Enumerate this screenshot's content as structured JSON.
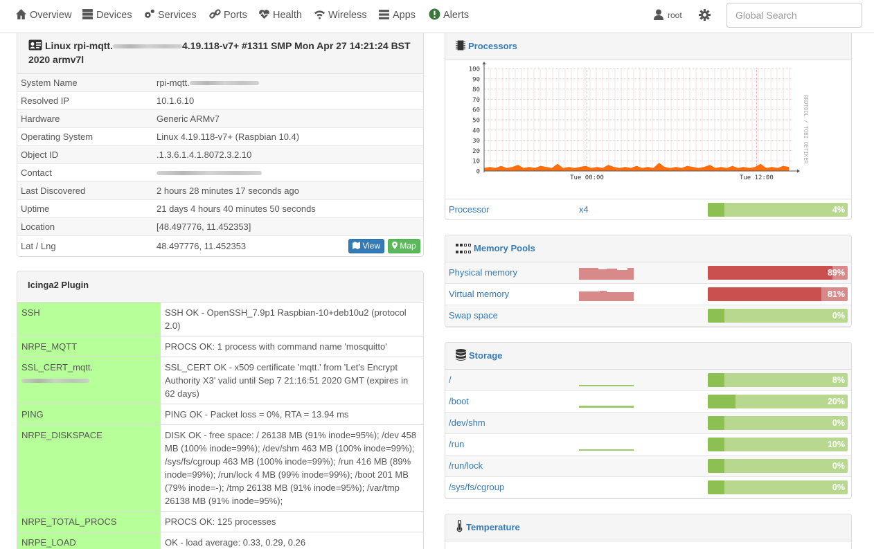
{
  "nav": {
    "items": [
      {
        "label": "Overview",
        "icon": "home-icon"
      },
      {
        "label": "Devices",
        "icon": "server-icon"
      },
      {
        "label": "Services",
        "icon": "cogs-icon"
      },
      {
        "label": "Ports",
        "icon": "link-icon"
      },
      {
        "label": "Health",
        "icon": "heartbeat-icon"
      },
      {
        "label": "Wireless",
        "icon": "wifi-icon"
      },
      {
        "label": "Apps",
        "icon": "tasks-icon"
      },
      {
        "label": "Alerts",
        "icon": "exclamation-circle-icon"
      }
    ],
    "user": "root",
    "search_placeholder": "Global Search"
  },
  "system": {
    "title_prefix": "Linux rpi-mqtt.",
    "title_suffix": "4.19.118-v7+ #1311 SMP Mon Apr 27 14:21:24 BST 2020 armv7l",
    "rows": [
      {
        "key": "System Name",
        "value": "rpi-mqtt."
      },
      {
        "key": "Resolved IP",
        "value": "10.1.6.10"
      },
      {
        "key": "Hardware",
        "value": "Generic ARMv7"
      },
      {
        "key": "Operating System",
        "value": "Linux 4.19.118-v7+ (Raspbian 10.4)"
      },
      {
        "key": "Object ID",
        "value": ".1.3.6.1.4.1.8072.3.2.10"
      },
      {
        "key": "Contact",
        "value": ""
      },
      {
        "key": "Last Discovered",
        "value": "2 hours 28 minutes 17 seconds ago"
      },
      {
        "key": "Uptime",
        "value": "21 days 4 hours 40 minutes 50 seconds"
      },
      {
        "key": "Location",
        "value": "[48.497776, 11.452353]"
      },
      {
        "key": "Lat / Lng",
        "value": "48.497776, 11.452353"
      }
    ],
    "view_button": "View",
    "map_button": "Map"
  },
  "icinga": {
    "title": "Icinga2 Plugin",
    "rows": [
      {
        "key": "SSH",
        "value": "SSH OK - OpenSSH_7.9p1 Raspbian-10+deb10u2 (protocol 2.0)"
      },
      {
        "key": "NRPE_MQTT",
        "value": "PROCS OK: 1 process with command name 'mosquitto'"
      },
      {
        "key": "SSL_CERT_mqtt.",
        "value": "SSL_CERT OK - x509 certificate 'mqtt.' from 'Let's Encrypt Authority X3' valid until Sep 7 21:16:51 2020 GMT (expires in 62 days)"
      },
      {
        "key": "PING",
        "value": "PING OK - Packet loss = 0%, RTA = 13.94 ms"
      },
      {
        "key": "NRPE_DISKSPACE",
        "value": "DISK OK - free space: / 26138 MB (91% inode=95%); /dev 458 MB (100% inode=99%); /dev/shm 463 MB (100% inode=99%); /sys/fs/cgroup 463 MB (100% inode=99%); /run 416 MB (89% inode=99%); /run/lock 4 MB (99% inode=99%); /boot 201 MB (79% inode=-); /tmp 26138 MB (91% inode=95%); /var/tmp 26138 MB (91% inode=95%);"
      },
      {
        "key": "NRPE_TOTAL_PROCS",
        "value": "PROCS OK: 125 processes"
      },
      {
        "key": "NRPE_LOAD",
        "value": "OK - load average: 0.33, 0.29, 0.26"
      }
    ]
  },
  "processors": {
    "title": "Processors",
    "rows": [
      {
        "name": "Processor",
        "count": "x4",
        "percent": 4,
        "percent_label": "4%"
      }
    ]
  },
  "chart_data": {
    "type": "area",
    "title": "",
    "ylim": [
      0,
      100
    ],
    "yticks": [
      0,
      10,
      20,
      30,
      40,
      50,
      60,
      70,
      80,
      90,
      100
    ],
    "xtick_labels": [
      "Tue 00:00",
      "Tue 12:00"
    ],
    "side_label": "RRDTOOL / TOBI OETIKER",
    "series": [
      {
        "values": [
          3,
          4,
          3,
          5,
          3,
          4,
          6,
          3,
          4,
          3,
          5,
          4,
          3,
          7,
          3,
          4,
          3,
          4,
          5,
          3,
          4,
          3,
          6,
          4,
          3,
          4,
          3,
          5,
          3,
          4,
          3,
          8,
          4,
          3,
          4,
          3,
          5,
          4,
          3,
          4,
          6,
          3,
          4,
          3,
          5,
          3,
          4,
          3,
          4,
          7,
          3,
          4,
          3,
          5,
          4
        ]
      }
    ],
    "color": "#ff6600"
  },
  "memory": {
    "title": "Memory Pools",
    "rows": [
      {
        "name": "Physical memory",
        "percent": 89,
        "percent_label": "89%",
        "alert": true
      },
      {
        "name": "Virtual memory",
        "percent": 81,
        "percent_label": "81%",
        "alert": true
      },
      {
        "name": "Swap space",
        "percent": 0,
        "percent_label": "0%",
        "alert": false
      }
    ]
  },
  "storage": {
    "title": "Storage",
    "rows": [
      {
        "name": "/",
        "percent": 8,
        "percent_label": "8%"
      },
      {
        "name": "/boot",
        "percent": 20,
        "percent_label": "20%"
      },
      {
        "name": "/dev/shm",
        "percent": 0,
        "percent_label": "0%"
      },
      {
        "name": "/run",
        "percent": 10,
        "percent_label": "10%"
      },
      {
        "name": "/run/lock",
        "percent": 0,
        "percent_label": "0%"
      },
      {
        "name": "/sys/fs/cgroup",
        "percent": 0,
        "percent_label": "0%"
      }
    ]
  },
  "temperature": {
    "title": "Temperature"
  }
}
